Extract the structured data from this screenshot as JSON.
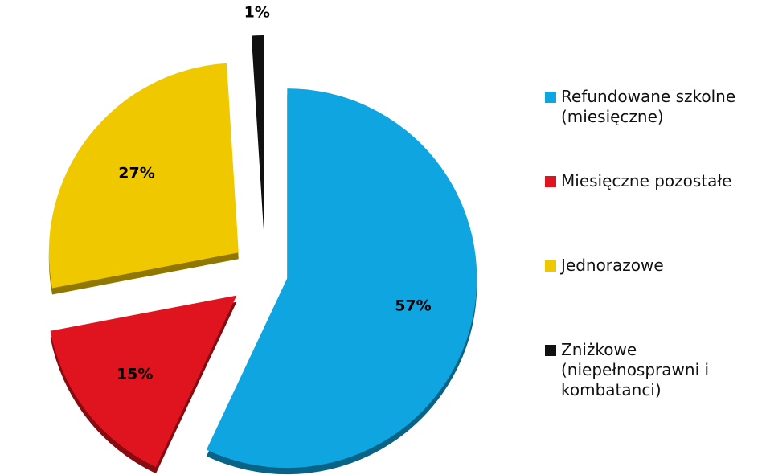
{
  "chart_data": {
    "type": "pie",
    "categories": [
      "Refundowane szkolne (miesięczne)",
      "Miesięczne pozostałe",
      "Jednorazowe",
      "Zniżkowe (niepełnosprawni i kombatanci)"
    ],
    "values": [
      57,
      15,
      27,
      1
    ],
    "value_labels": [
      "57%",
      "15%",
      "27%",
      "1%"
    ],
    "colors": [
      "#0ea5e0",
      "#e0141e",
      "#f0c800",
      "#111111"
    ],
    "legend": "right"
  }
}
